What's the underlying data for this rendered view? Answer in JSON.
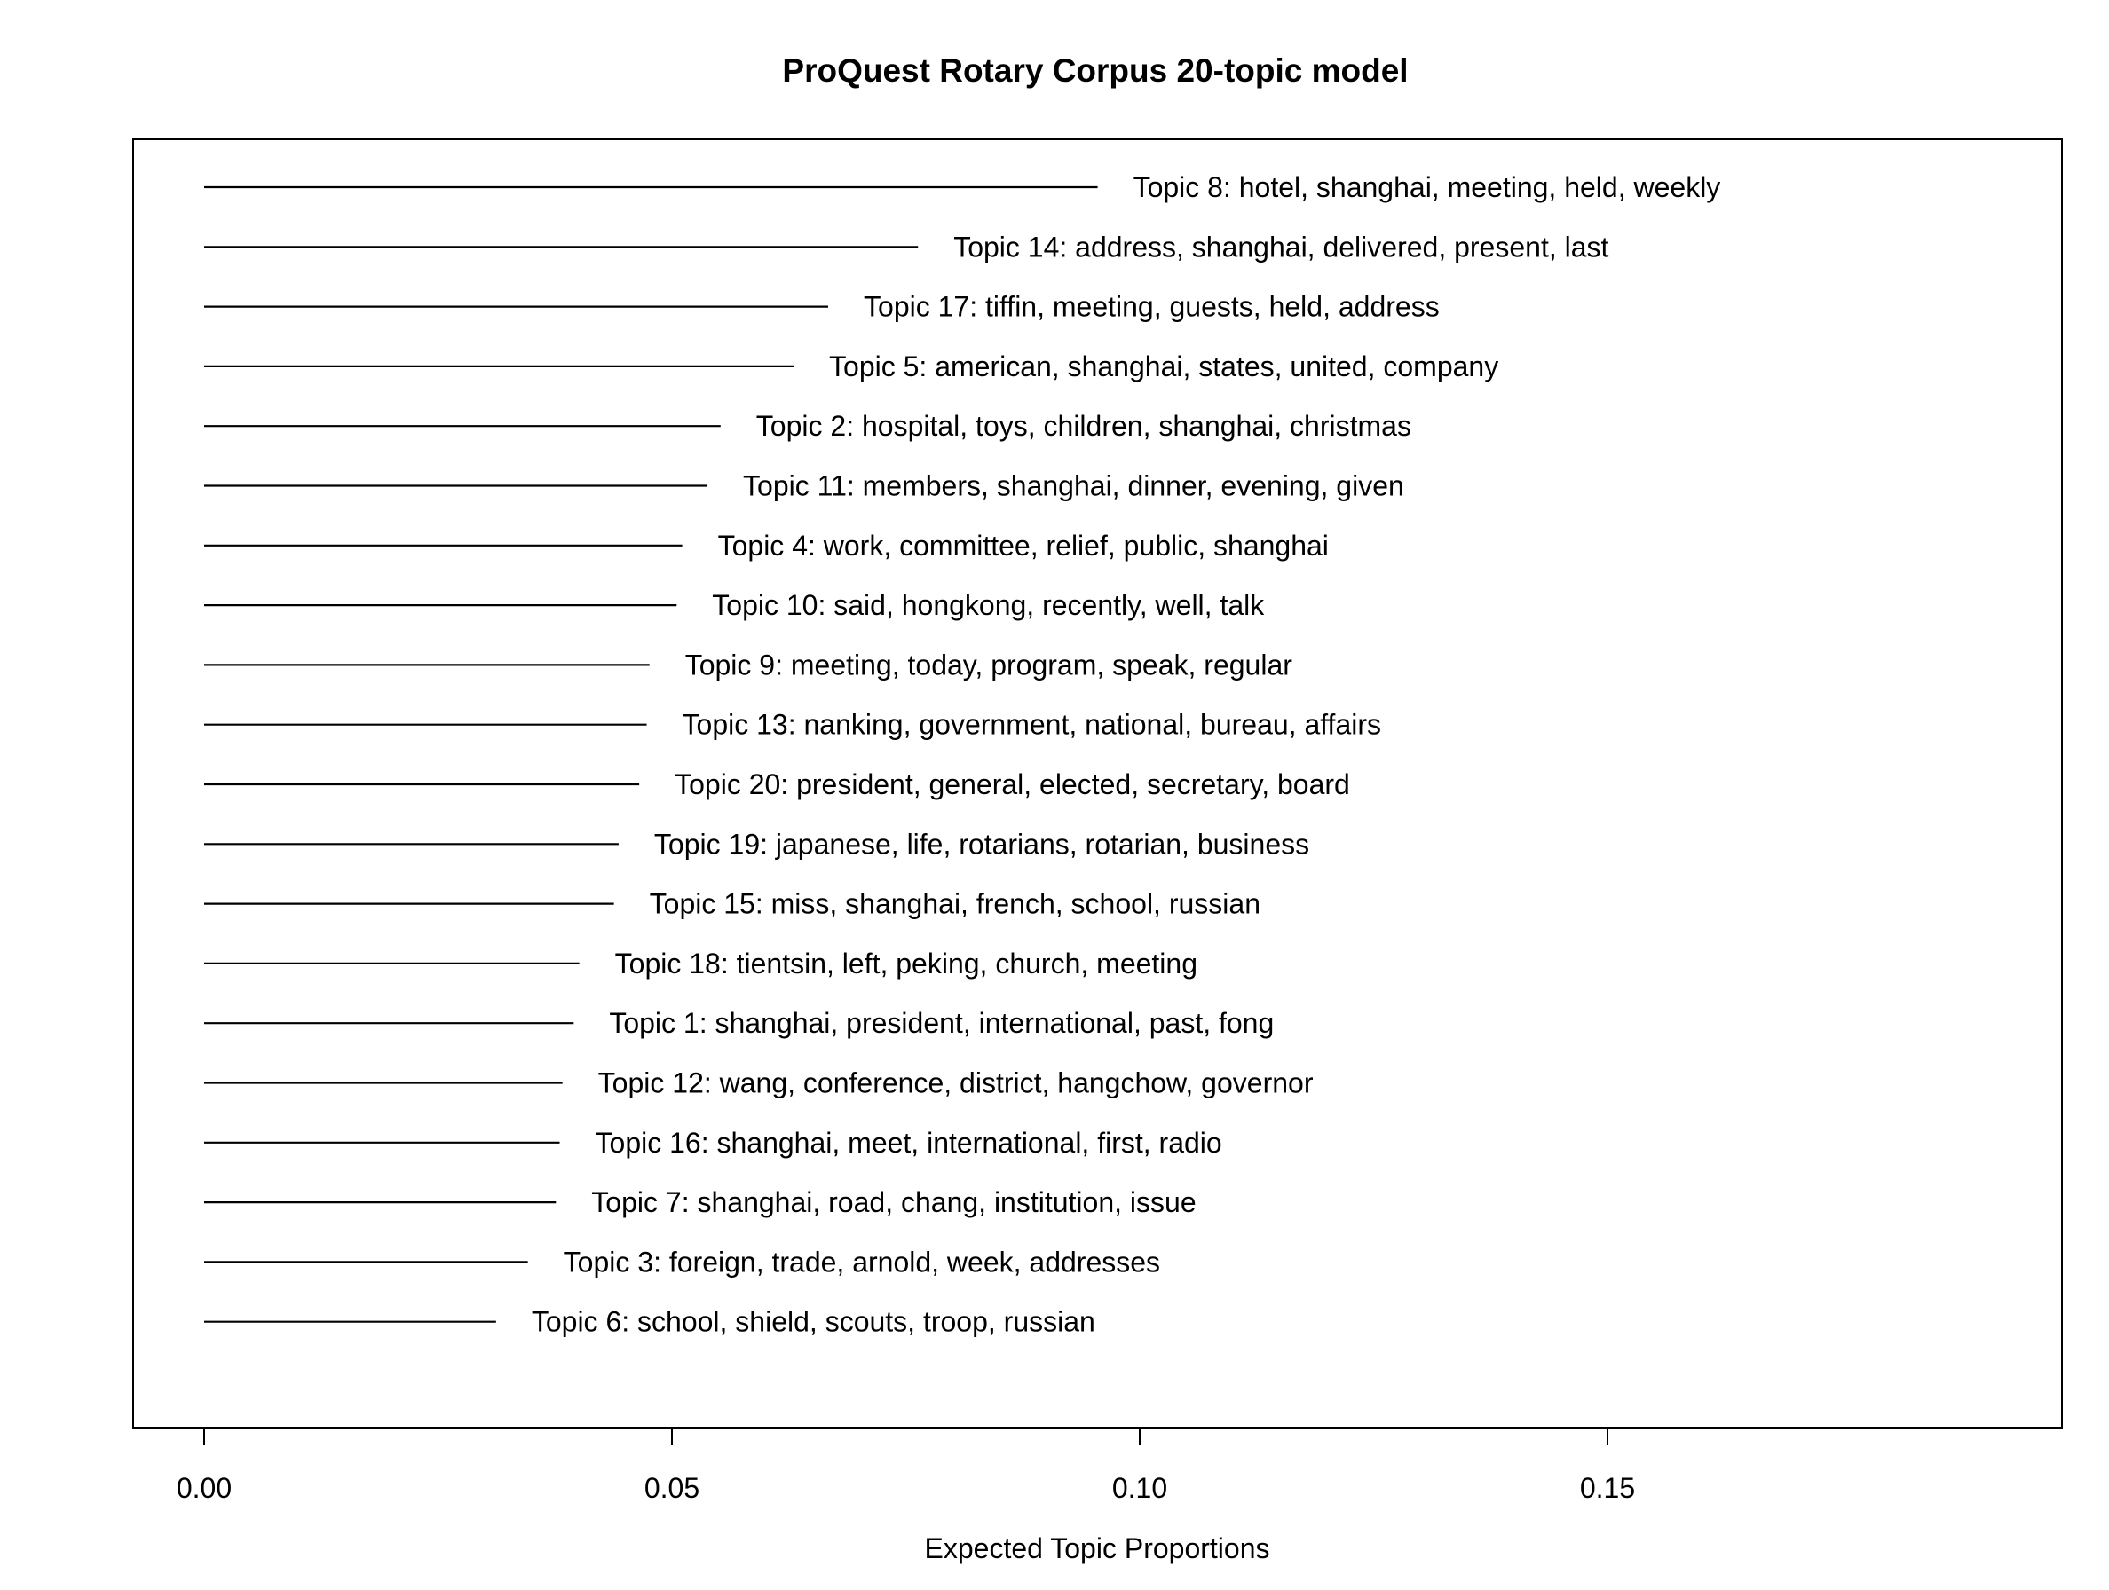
{
  "chart_data": {
    "type": "bar",
    "orientation": "horizontal",
    "title": "ProQuest Rotary Corpus 20-topic model",
    "xlabel": "Expected Topic Proportions",
    "ylabel": "",
    "xlim": [
      0,
      0.19
    ],
    "grid": false,
    "legend": "none",
    "x_ticks": [
      "0.00",
      "0.05",
      "0.10",
      "0.15"
    ],
    "x_tick_values": [
      0.0,
      0.05,
      0.1,
      0.15
    ],
    "topics": [
      {
        "label": "Topic 8: hotel, shanghai, meeting, held, weekly",
        "value": 0.0955
      },
      {
        "label": "Topic 14: address, shanghai, delivered, present, last",
        "value": 0.0763
      },
      {
        "label": "Topic 17: tiffin, meeting, guests, held, address",
        "value": 0.0667
      },
      {
        "label": "Topic 5: american, shanghai, states, united, company",
        "value": 0.063
      },
      {
        "label": "Topic 2: hospital, toys, children, shanghai, christmas",
        "value": 0.0552
      },
      {
        "label": "Topic 11: members, shanghai, dinner, evening, given",
        "value": 0.0538
      },
      {
        "label": "Topic 4: work, committee, relief, public, shanghai",
        "value": 0.0511
      },
      {
        "label": "Topic 10: said, hongkong, recently, well, talk",
        "value": 0.0505
      },
      {
        "label": "Topic 9: meeting, today, program, speak, regular",
        "value": 0.0476
      },
      {
        "label": "Topic 13: nanking, government, national, bureau, affairs",
        "value": 0.0473
      },
      {
        "label": "Topic 20: president, general, elected, secretary, board",
        "value": 0.0465
      },
      {
        "label": "Topic 19: japanese, life, rotarians, rotarian, business",
        "value": 0.0443
      },
      {
        "label": "Topic 15: miss, shanghai, french, school, russian",
        "value": 0.0438
      },
      {
        "label": "Topic 18: tientsin, left, peking, church, meeting",
        "value": 0.0401
      },
      {
        "label": "Topic 1: shanghai, president, international, past, fong",
        "value": 0.0395
      },
      {
        "label": "Topic 12: wang, conference, district, hangchow, governor",
        "value": 0.0383
      },
      {
        "label": "Topic 16: shanghai, meet, international, first, radio",
        "value": 0.038
      },
      {
        "label": "Topic 7: shanghai, road, chang, institution, issue",
        "value": 0.0376
      },
      {
        "label": "Topic 3: foreign, trade, arnold, week, addresses",
        "value": 0.0346
      },
      {
        "label": "Topic 6: school, shield, scouts, troop, russian",
        "value": 0.0312
      }
    ]
  }
}
